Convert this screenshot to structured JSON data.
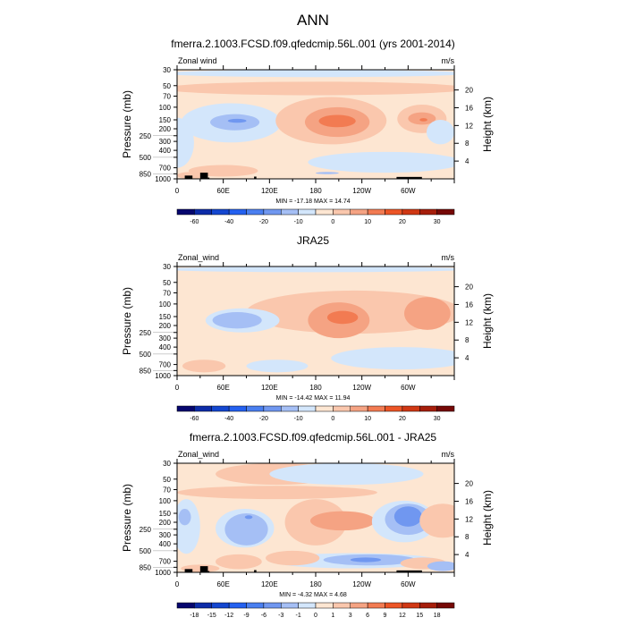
{
  "main_title": "ANN",
  "colors": [
    "#06066e",
    "#0d2ca8",
    "#1447d0",
    "#2461f0",
    "#4a7ff0",
    "#7097f0",
    "#a5bff5",
    "#d3e6fb",
    "#fde6d2",
    "#fac7ad",
    "#f5a383",
    "#f27b52",
    "#ec5526",
    "#d03814",
    "#a61e0b",
    "#760806"
  ],
  "chart_data": [
    {
      "type": "contour",
      "title": "fmerra.2.1003.FCSD.f09.qfedcmip.56L.001 (yrs 2001-2014)",
      "left_label": "Zonal wind",
      "right_label": "m/s",
      "ylabel": "Pressure (mb)",
      "y2label": "Height (km)",
      "xticks": [
        "0",
        "60E",
        "120E",
        "180",
        "120W",
        "60W"
      ],
      "yticks": [
        "30",
        "50",
        "70",
        "100",
        "150",
        "200",
        "250",
        "300",
        "400",
        "500",
        "700",
        "850",
        "1000"
      ],
      "y2ticks": [
        "4",
        "8",
        "12",
        "16",
        "20"
      ],
      "xlim": [
        0,
        360
      ],
      "ylim": [
        1000,
        30
      ],
      "yscale": "log",
      "stats": "MIN = -17.18  MAX =  14.74",
      "colorbar_labels": [
        "-60",
        "-40",
        "-20",
        "-10",
        "0",
        "10",
        "20",
        "30"
      ]
    },
    {
      "type": "contour",
      "title": "JRA25",
      "left_label": "Zonal_wind",
      "right_label": "m/s",
      "ylabel": "Pressure (mb)",
      "y2label": "Height (km)",
      "xticks": [
        "0",
        "60E",
        "120E",
        "180",
        "120W",
        "60W"
      ],
      "yticks": [
        "30",
        "50",
        "70",
        "100",
        "150",
        "200",
        "250",
        "300",
        "400",
        "500",
        "700",
        "850",
        "1000"
      ],
      "y2ticks": [
        "4",
        "8",
        "12",
        "16",
        "20"
      ],
      "xlim": [
        0,
        360
      ],
      "ylim": [
        1000,
        30
      ],
      "yscale": "log",
      "stats": "MIN = -14.42  MAX =  11.94",
      "colorbar_labels": [
        "-60",
        "-40",
        "-20",
        "-10",
        "0",
        "10",
        "20",
        "30"
      ]
    },
    {
      "type": "contour",
      "title": "fmerra.2.1003.FCSD.f09.qfedcmip.56L.001 - JRA25",
      "left_label": "Zonal_wind",
      "right_label": "m/s",
      "ylabel": "Pressure (mb)",
      "y2label": "Height (km)",
      "xticks": [
        "0",
        "60E",
        "120E",
        "180",
        "120W",
        "60W"
      ],
      "yticks": [
        "30",
        "50",
        "70",
        "100",
        "150",
        "200",
        "250",
        "300",
        "400",
        "500",
        "700",
        "850",
        "1000"
      ],
      "y2ticks": [
        "4",
        "8",
        "12",
        "16",
        "20"
      ],
      "xlim": [
        0,
        360
      ],
      "ylim": [
        1000,
        30
      ],
      "yscale": "log",
      "stats": "MIN =  -4.32  MAX =   4.68",
      "colorbar_labels": [
        "-18",
        "-15",
        "-12",
        "-9",
        "-6",
        "-3",
        "-1",
        "0",
        "1",
        "3",
        "6",
        "9",
        "12",
        "15",
        "18"
      ]
    }
  ]
}
